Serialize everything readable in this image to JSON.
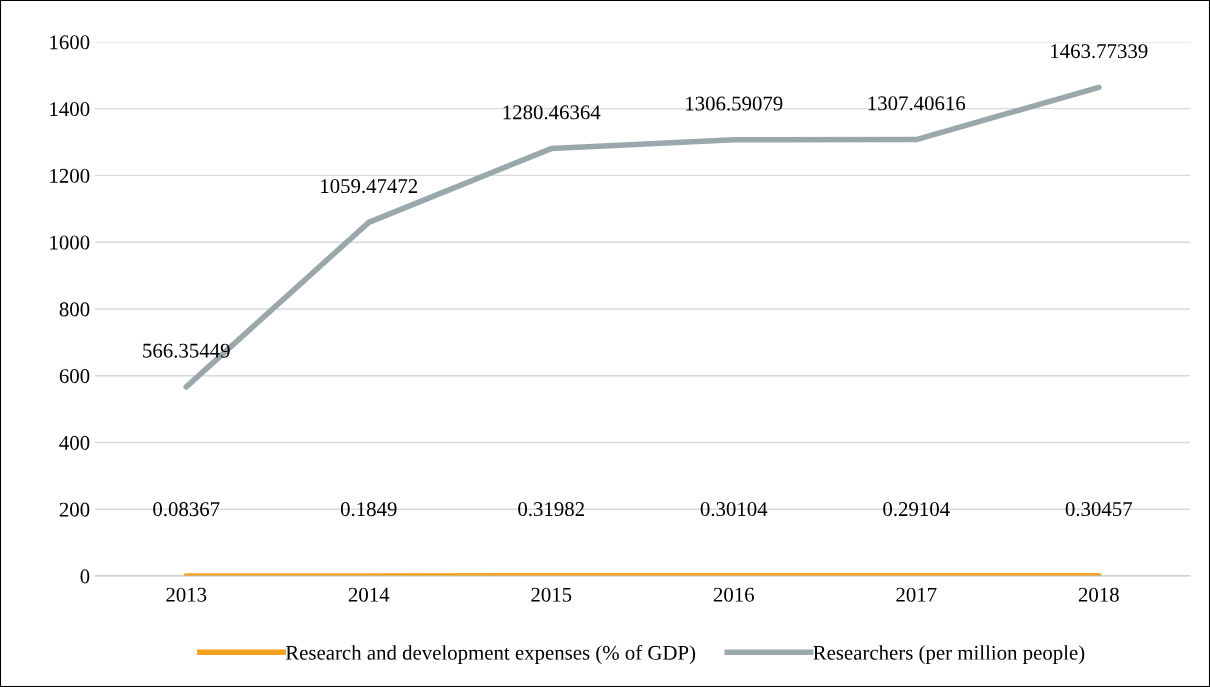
{
  "chart_data": {
    "type": "line",
    "categories": [
      "2013",
      "2014",
      "2015",
      "2016",
      "2017",
      "2018"
    ],
    "series": [
      {
        "name": "Research and development expenses (% of GDP)",
        "color": "#f5a31f",
        "values": [
          0.08367,
          0.1849,
          0.31982,
          0.30104,
          0.29104,
          0.30457
        ]
      },
      {
        "name": "Researchers (per million people)",
        "color": "#9aa8ab",
        "values": [
          566.35449,
          1059.47472,
          1280.46364,
          1306.59079,
          1307.40616,
          1463.77339
        ]
      }
    ],
    "ylim": [
      0,
      1600
    ],
    "yticks": [
      0,
      200,
      400,
      600,
      800,
      1000,
      1200,
      1400,
      1600
    ],
    "grid": "y",
    "legend": "bottom",
    "data_labels": true,
    "marker": "none",
    "line_style": "solid"
  }
}
